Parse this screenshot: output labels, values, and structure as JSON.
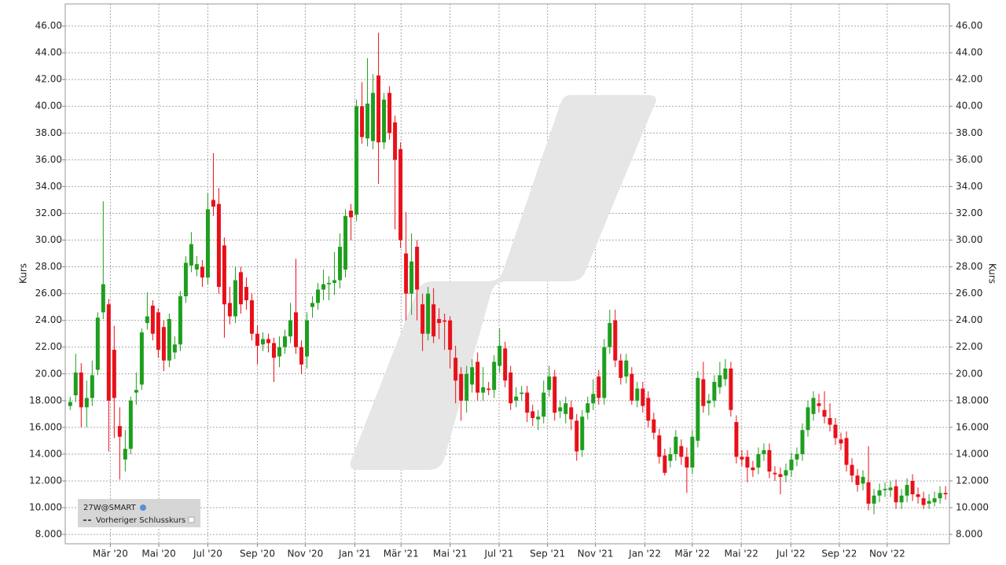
{
  "chart_data": {
    "type": "candlestick",
    "y_label": "Kurs",
    "y2_label": "Kurs",
    "previous_close_label": "Vorheriger Schlusskurs",
    "legend": "bottom-left",
    "grid": true,
    "up_color": "#1e9e1e",
    "down_color": "#e8101a",
    "xlim": [
      -0.9,
      159.7
    ],
    "xticks": [
      {
        "value": 7.3,
        "label": "Mär '20"
      },
      {
        "value": 16.1,
        "label": "Mai '20"
      },
      {
        "value": 25,
        "label": "Jul '20"
      },
      {
        "value": 34,
        "label": "Sep '20"
      },
      {
        "value": 42.7,
        "label": "Nov '20"
      },
      {
        "value": 51.7,
        "label": "Jan '21"
      },
      {
        "value": 60.1,
        "label": "Mär '21"
      },
      {
        "value": 69,
        "label": "Mai '21"
      },
      {
        "value": 77.9,
        "label": "Jul '21"
      },
      {
        "value": 86.7,
        "label": "Sep '21"
      },
      {
        "value": 95.4,
        "label": "Nov '21"
      },
      {
        "value": 104.4,
        "label": "Jan '22"
      },
      {
        "value": 113,
        "label": "Mär '22"
      },
      {
        "value": 121.9,
        "label": "Mai '22"
      },
      {
        "value": 130.9,
        "label": "Jul '22"
      },
      {
        "value": 139.7,
        "label": "Sep '22"
      },
      {
        "value": 148.4,
        "label": "Nov '22"
      }
    ],
    "ylim": [
      7.3,
      47.65
    ],
    "yticks": [
      {
        "value": 46,
        "label": "46.00"
      },
      {
        "value": 44,
        "label": "44.00"
      },
      {
        "value": 42,
        "label": "42.00"
      },
      {
        "value": 40,
        "label": "40.00"
      },
      {
        "value": 38,
        "label": "38.00"
      },
      {
        "value": 36,
        "label": "36.00"
      },
      {
        "value": 34,
        "label": "34.00"
      },
      {
        "value": 32,
        "label": "32.00"
      },
      {
        "value": 30,
        "label": "30.00"
      },
      {
        "value": 28,
        "label": "28.00"
      },
      {
        "value": 26,
        "label": "26.00"
      },
      {
        "value": 24,
        "label": "24.00"
      },
      {
        "value": 22,
        "label": "22.00"
      },
      {
        "value": 20,
        "label": "20.00"
      },
      {
        "value": 18,
        "label": "18.000"
      },
      {
        "value": 16,
        "label": "16.000"
      },
      {
        "value": 14,
        "label": "14.000"
      },
      {
        "value": 12,
        "label": "12.000"
      },
      {
        "value": 10,
        "label": "10.000"
      },
      {
        "value": 8,
        "label": "8.000"
      }
    ],
    "y2lim": [
      7.3,
      47.65
    ],
    "y2ticks": [
      {
        "value": 46,
        "label": "46.00"
      },
      {
        "value": 44,
        "label": "44.00"
      },
      {
        "value": 42,
        "label": "42.00"
      },
      {
        "value": 40,
        "label": "40.00"
      },
      {
        "value": 38,
        "label": "38.00"
      },
      {
        "value": 36,
        "label": "36.00"
      },
      {
        "value": 34,
        "label": "34.00"
      },
      {
        "value": 32,
        "label": "32.00"
      },
      {
        "value": 30,
        "label": "30.00"
      },
      {
        "value": 28,
        "label": "28.00"
      },
      {
        "value": 26,
        "label": "26.00"
      },
      {
        "value": 24,
        "label": "24.00"
      },
      {
        "value": 22,
        "label": "22.00"
      },
      {
        "value": 20,
        "label": "20.00"
      },
      {
        "value": 18,
        "label": "18.000"
      },
      {
        "value": 16,
        "label": "16.000"
      },
      {
        "value": 14,
        "label": "14.000"
      },
      {
        "value": 12,
        "label": "12.000"
      },
      {
        "value": 10,
        "label": "10.000"
      },
      {
        "value": 8,
        "label": "8.000"
      }
    ],
    "series": [
      {
        "name": "27W@SMART",
        "open": [
          17.6,
          18.4,
          20.1,
          17.5,
          18.2,
          20.3,
          24.6,
          25.2,
          21.8,
          16.1,
          13.6,
          14.4,
          18.6,
          19.2,
          23.8,
          25.1,
          24.6,
          23.5,
          21.0,
          21.6,
          22.2,
          25.8,
          28.1,
          27.8,
          28.0,
          27.2,
          33.0,
          32.7,
          29.6,
          25.3,
          24.3,
          27.6,
          26.5,
          25.5,
          23.0,
          22.2,
          22.6,
          22.3,
          21.3,
          22.0,
          22.8,
          24.6,
          22.0,
          21.3,
          25.0,
          25.3,
          26.3,
          26.7,
          26.8,
          27.0,
          27.8,
          32.2,
          31.9,
          40.0,
          37.6,
          37.4,
          42.3,
          37.3,
          41.0,
          38.8,
          36.8,
          29.0,
          26.0,
          29.5,
          25.2,
          23.0,
          25.2,
          24.1,
          24.0,
          24.0,
          21.2,
          20.0,
          18.0,
          19.2,
          20.9,
          18.6,
          18.9,
          18.8,
          20.6,
          21.9,
          20.1,
          18.0,
          18.5,
          18.6,
          17.2,
          16.6,
          16.8,
          18.8,
          19.8,
          17.2,
          17.0,
          17.5,
          16.5,
          14.3,
          17.1,
          17.8,
          19.8,
          18.2,
          22.0,
          24.0,
          21.0,
          19.8,
          20.0,
          18.0,
          18.9,
          18.2,
          16.6,
          15.4,
          13.9,
          13.5,
          14.0,
          14.6,
          13.8,
          13.0,
          15.0,
          19.6,
          17.8,
          18.0,
          19.0,
          19.6,
          20.4,
          16.4,
          13.8,
          13.8,
          13.0,
          13.0,
          14.0,
          14.3,
          12.6,
          12.5,
          12.4,
          12.8,
          13.6,
          14.0,
          15.8,
          17.0,
          17.8,
          17.3,
          16.7,
          16.2,
          15.1,
          15.2,
          13.2,
          12.4,
          11.8,
          11.9,
          10.3,
          10.9,
          11.3,
          11.3,
          11.6,
          10.4,
          10.9,
          12.0,
          11.0,
          10.7,
          10.3,
          10.4,
          10.7,
          11.1
        ],
        "high": [
          18.3,
          21.5,
          20.8,
          19.5,
          21.0,
          24.6,
          32.9,
          25.6,
          23.6,
          17.5,
          15.8,
          18.3,
          20.1,
          23.4,
          26.1,
          25.5,
          24.9,
          24.0,
          24.5,
          22.8,
          26.2,
          28.8,
          30.6,
          28.8,
          28.5,
          33.5,
          36.5,
          33.9,
          30.2,
          26.5,
          28.0,
          28.0,
          27.2,
          26.0,
          23.6,
          23.1,
          23.0,
          22.7,
          22.8,
          23.3,
          25.3,
          28.6,
          22.5,
          24.6,
          25.8,
          26.8,
          27.8,
          27.3,
          29.1,
          30.5,
          32.3,
          32.7,
          40.5,
          41.8,
          43.6,
          42.4,
          45.5,
          41.0,
          41.5,
          39.3,
          37.3,
          32.1,
          30.5,
          30.0,
          26.0,
          26.5,
          26.4,
          24.9,
          24.5,
          24.3,
          22.1,
          20.5,
          20.6,
          21.1,
          21.6,
          20.5,
          19.4,
          21.4,
          23.4,
          22.4,
          20.6,
          19.0,
          19.1,
          19.1,
          17.7,
          17.3,
          19.5,
          20.6,
          20.3,
          18.0,
          18.3,
          18.0,
          17.0,
          17.3,
          18.3,
          19.6,
          20.3,
          22.6,
          24.8,
          24.8,
          21.5,
          21.5,
          20.5,
          19.4,
          19.4,
          18.7,
          17.1,
          15.9,
          14.4,
          14.5,
          15.8,
          15.1,
          14.5,
          15.8,
          20.2,
          20.9,
          18.5,
          19.9,
          20.9,
          21.1,
          20.9,
          16.9,
          14.3,
          14.3,
          13.5,
          14.5,
          14.8,
          14.8,
          13.1,
          13.0,
          13.3,
          14.1,
          14.5,
          16.3,
          18.0,
          18.7,
          18.5,
          18.7,
          17.8,
          16.7,
          15.6,
          15.7,
          13.7,
          12.9,
          12.8,
          14.6,
          11.4,
          11.8,
          11.9,
          12.0,
          12.1,
          11.4,
          12.2,
          12.5,
          11.5,
          11.2,
          11.0,
          11.2,
          11.6,
          11.6
        ],
        "low": [
          17.3,
          17.9,
          16.0,
          16.0,
          17.6,
          19.9,
          24.1,
          14.2,
          15.2,
          12.1,
          12.7,
          14.0,
          17.7,
          18.8,
          23.3,
          22.5,
          21.2,
          20.2,
          20.5,
          21.1,
          21.7,
          25.3,
          27.6,
          27.3,
          26.5,
          26.7,
          31.8,
          26.0,
          22.7,
          23.7,
          23.8,
          24.5,
          24.8,
          22.5,
          20.7,
          21.7,
          21.6,
          19.4,
          20.5,
          21.5,
          22.3,
          21.5,
          20.0,
          20.4,
          24.2,
          24.8,
          25.5,
          25.5,
          25.9,
          26.4,
          27.2,
          30.0,
          31.4,
          37.2,
          37.0,
          36.8,
          34.2,
          36.8,
          37.5,
          30.8,
          29.4,
          24.0,
          24.4,
          24.0,
          21.7,
          22.5,
          22.3,
          22.6,
          21.8,
          20.4,
          17.8,
          16.5,
          17.1,
          18.6,
          18.0,
          18.0,
          18.4,
          18.2,
          20.1,
          19.0,
          17.3,
          17.5,
          18.0,
          16.4,
          16.1,
          15.8,
          16.3,
          18.3,
          16.5,
          16.7,
          16.3,
          15.8,
          13.5,
          13.8,
          16.6,
          17.3,
          17.7,
          17.7,
          21.5,
          20.5,
          19.2,
          19.3,
          17.7,
          17.5,
          17.1,
          16.0,
          15.1,
          13.3,
          12.4,
          13.0,
          13.5,
          13.2,
          11.1,
          12.5,
          14.5,
          17.1,
          16.9,
          17.5,
          18.5,
          19.1,
          16.8,
          13.3,
          13.1,
          11.9,
          12.3,
          12.5,
          13.5,
          12.2,
          12.0,
          11.0,
          11.9,
          12.3,
          13.1,
          13.5,
          15.3,
          16.5,
          17.1,
          16.3,
          15.7,
          14.7,
          14.3,
          12.7,
          11.9,
          11.2,
          11.3,
          9.8,
          9.5,
          10.4,
          10.8,
          10.8,
          9.9,
          9.9,
          10.4,
          10.5,
          10.3,
          9.9,
          9.9,
          10.1,
          10.3,
          10.6
        ],
        "close": [
          17.9,
          20.1,
          17.5,
          18.2,
          19.9,
          24.2,
          26.7,
          18.0,
          18.2,
          15.3,
          14.4,
          18.0,
          18.8,
          23.1,
          24.3,
          23.0,
          21.8,
          21.0,
          24.1,
          22.2,
          25.8,
          28.3,
          29.7,
          28.2,
          27.2,
          32.3,
          32.5,
          26.5,
          25.2,
          24.3,
          27.0,
          25.2,
          25.5,
          23.0,
          22.1,
          22.6,
          22.3,
          21.2,
          22.0,
          22.8,
          24.0,
          22.0,
          20.7,
          24.0,
          25.3,
          26.3,
          26.7,
          26.8,
          27.0,
          29.5,
          31.8,
          31.7,
          40.0,
          37.7,
          40.2,
          41.0,
          37.3,
          40.5,
          38.0,
          36.0,
          30.0,
          26.0,
          28.4,
          26.3,
          23.0,
          26.0,
          22.8,
          23.8,
          23.9,
          21.8,
          19.5,
          18.0,
          20.0,
          20.5,
          18.6,
          19.0,
          18.8,
          20.9,
          22.1,
          19.5,
          17.8,
          18.3,
          18.6,
          17.1,
          16.7,
          16.8,
          18.6,
          19.8,
          17.1,
          17.5,
          17.8,
          16.6,
          14.2,
          16.8,
          17.8,
          18.5,
          18.2,
          22.0,
          23.8,
          21.0,
          19.7,
          21.0,
          18.0,
          18.9,
          17.6,
          16.5,
          15.6,
          13.8,
          12.6,
          14.0,
          15.3,
          13.8,
          13.0,
          15.3,
          19.7,
          17.6,
          18.0,
          19.4,
          19.9,
          20.4,
          17.3,
          13.8,
          13.6,
          13.0,
          12.8,
          14.0,
          14.3,
          12.7,
          12.5,
          12.3,
          12.8,
          13.6,
          14.0,
          15.8,
          17.5,
          18.2,
          17.6,
          16.8,
          16.2,
          15.2,
          14.8,
          13.2,
          12.4,
          11.7,
          12.3,
          10.3,
          10.9,
          11.3,
          11.4,
          11.5,
          10.4,
          10.9,
          11.7,
          11.0,
          10.8,
          10.2,
          10.5,
          10.7,
          11.1,
          11.0
        ]
      }
    ]
  }
}
